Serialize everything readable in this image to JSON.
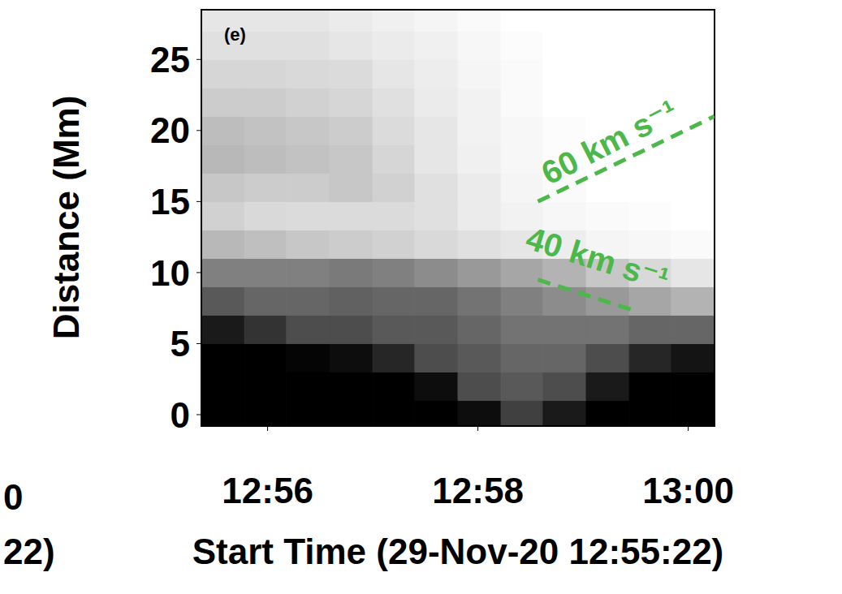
{
  "chart_data": {
    "type": "heatmap",
    "x_label": "Start Time (29-Nov-20 12:55:22)",
    "y_label": "Distance (Mm)",
    "xlim": [
      55.37,
      60.25
    ],
    "xticks": [
      {
        "value": 56,
        "label": "12:56"
      },
      {
        "value": 58,
        "label": "12:58"
      },
      {
        "value": 60,
        "label": "13:00"
      }
    ],
    "ylim": [
      -0.8,
      28.5
    ],
    "yticks": [
      0,
      5,
      10,
      15,
      20,
      25
    ],
    "cells": {
      "x_edges": [
        55.37,
        55.78,
        56.18,
        56.59,
        57.0,
        57.4,
        57.81,
        58.22,
        58.62,
        59.03,
        59.44,
        59.84,
        60.25
      ],
      "y_edges": [
        -0.8,
        1,
        3,
        5,
        7,
        9,
        11,
        13,
        15,
        17,
        19,
        21,
        23,
        25,
        27,
        28.5
      ],
      "zlim": [
        0,
        1
      ],
      "z": [
        [
          0,
          0,
          0,
          0,
          0,
          0,
          0.05,
          0.25,
          0.1,
          0,
          0,
          0
        ],
        [
          0,
          0,
          0,
          0,
          0,
          0.05,
          0.3,
          0.35,
          0.3,
          0.1,
          0,
          0
        ],
        [
          0,
          0,
          0.02,
          0.05,
          0.15,
          0.3,
          0.35,
          0.4,
          0.4,
          0.3,
          0.15,
          0.08
        ],
        [
          0.1,
          0.2,
          0.3,
          0.3,
          0.35,
          0.35,
          0.4,
          0.45,
          0.45,
          0.45,
          0.4,
          0.4
        ],
        [
          0.35,
          0.4,
          0.4,
          0.38,
          0.4,
          0.4,
          0.45,
          0.5,
          0.55,
          0.6,
          0.65,
          0.7
        ],
        [
          0.5,
          0.5,
          0.5,
          0.48,
          0.5,
          0.55,
          0.6,
          0.65,
          0.7,
          0.78,
          0.85,
          0.9
        ],
        [
          0.72,
          0.75,
          0.78,
          0.8,
          0.82,
          0.85,
          0.88,
          0.9,
          0.93,
          0.96,
          0.97,
          0.98
        ],
        [
          0.82,
          0.85,
          0.86,
          0.86,
          0.86,
          0.88,
          0.92,
          0.95,
          0.97,
          0.98,
          0.99,
          1
        ],
        [
          0.78,
          0.8,
          0.8,
          0.78,
          0.82,
          0.88,
          0.92,
          0.96,
          0.98,
          1,
          1,
          1
        ],
        [
          0.72,
          0.74,
          0.76,
          0.78,
          0.84,
          0.9,
          0.94,
          0.97,
          0.99,
          1,
          1,
          1
        ],
        [
          0.74,
          0.76,
          0.78,
          0.8,
          0.86,
          0.9,
          0.95,
          0.97,
          0.99,
          1,
          1,
          1
        ],
        [
          0.8,
          0.8,
          0.82,
          0.84,
          0.88,
          0.92,
          0.95,
          0.98,
          1,
          1,
          1,
          1
        ],
        [
          0.84,
          0.84,
          0.85,
          0.86,
          0.9,
          0.93,
          0.96,
          0.98,
          1,
          1,
          1,
          1
        ],
        [
          0.88,
          0.88,
          0.88,
          0.9,
          0.92,
          0.94,
          0.97,
          0.99,
          1,
          1,
          1,
          1
        ],
        [
          0.9,
          0.9,
          0.9,
          0.92,
          0.94,
          0.96,
          0.98,
          1,
          1,
          1,
          1,
          1
        ]
      ]
    },
    "series": [
      {
        "name": "60 km s⁻¹",
        "type": "line",
        "color": "#4cb84a",
        "line_style": "dashed",
        "x": [
          58.57,
          60.25
        ],
        "y": [
          15,
          21
        ]
      },
      {
        "name": "40 km s⁻¹",
        "type": "line",
        "color": "#4cb84a",
        "line_style": "dashed",
        "x": [
          58.57,
          59.5
        ],
        "y": [
          9.5,
          7.3
        ]
      }
    ],
    "annotations": [
      {
        "text": "(e)"
      },
      {
        "text": "0"
      },
      {
        "text": "22)"
      }
    ]
  }
}
